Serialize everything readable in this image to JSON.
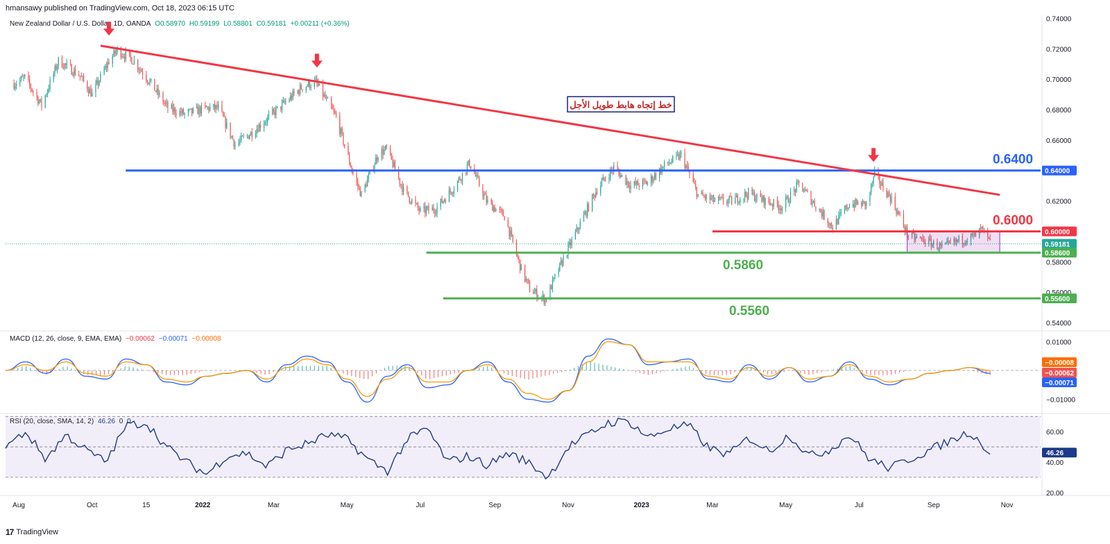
{
  "header": {
    "publisher": "hmansawy published on TradingView.com, Oct 18, 2023 06:15 UTC"
  },
  "price_legend": {
    "symbol": "New Zealand Dollar / U.S. Dollar, 1D, OANDA",
    "open": "O0.58970",
    "high": "H0.59199",
    "low": "L0.58801",
    "close": "C0.59181",
    "change": "+0.00211 (+0.36%)"
  },
  "macd_legend": {
    "label": "MACD (12, 26, close, 9, EMA, EMA)",
    "hist": "−0.00062",
    "macd": "−0.00071",
    "signal": "−0.00008"
  },
  "rsi_legend": {
    "label": "RSI (20, close, SMA, 14, 2)",
    "value": "46.26",
    "extra1": "0",
    "extra2": "0"
  },
  "brand": "TradingView",
  "colors": {
    "up": "#26a69a",
    "down": "#ef5350",
    "trend": "#f23645",
    "blue": "#2962ff",
    "green": "#4caf50",
    "macd": "#2962ff",
    "signal": "#ff9800",
    "rsi": "#1e3a8a"
  },
  "chart_data": [
    {
      "type": "candlestick",
      "title": "New Zealand Dollar / U.S. Dollar, 1D, OANDA",
      "ylim": [
        0.535,
        0.742
      ],
      "y_ticks": [
        "0.74000",
        "0.72000",
        "0.70000",
        "0.68000",
        "0.66000",
        "0.64000",
        "0.62000",
        "0.60000",
        "0.58000",
        "0.56000",
        "0.54000"
      ],
      "x_ticks": [
        "Aug",
        "Oct",
        "15",
        "2022",
        "Mar",
        "May",
        "Jul",
        "Sep",
        "Nov",
        "2023",
        "Mar",
        "May",
        "Jul",
        "Sep",
        "Nov"
      ],
      "price_path": [
        [
          "2021-07-28",
          0.697
        ],
        [
          "2021-08-06",
          0.701
        ],
        [
          "2021-08-20",
          0.683
        ],
        [
          "2021-09-03",
          0.712
        ],
        [
          "2021-09-20",
          0.703
        ],
        [
          "2021-10-01",
          0.69
        ],
        [
          "2021-10-15",
          0.712
        ],
        [
          "2021-10-22",
          0.719
        ],
        [
          "2021-11-05",
          0.712
        ],
        [
          "2021-11-19",
          0.697
        ],
        [
          "2021-12-03",
          0.681
        ],
        [
          "2021-12-17",
          0.677
        ],
        [
          "2022-01-04",
          0.681
        ],
        [
          "2022-01-14",
          0.681
        ],
        [
          "2022-01-28",
          0.657
        ],
        [
          "2022-02-11",
          0.665
        ],
        [
          "2022-03-04",
          0.68
        ],
        [
          "2022-03-25",
          0.695
        ],
        [
          "2022-04-05",
          0.698
        ],
        [
          "2022-04-22",
          0.675
        ],
        [
          "2022-05-06",
          0.638
        ],
        [
          "2022-05-13",
          0.624
        ],
        [
          "2022-05-27",
          0.651
        ],
        [
          "2022-06-03",
          0.654
        ],
        [
          "2022-06-17",
          0.627
        ],
        [
          "2022-07-01",
          0.613
        ],
        [
          "2022-07-14",
          0.615
        ],
        [
          "2022-07-29",
          0.629
        ],
        [
          "2022-08-11",
          0.645
        ],
        [
          "2022-08-25",
          0.62
        ],
        [
          "2022-09-09",
          0.61
        ],
        [
          "2022-09-23",
          0.575
        ],
        [
          "2022-09-30",
          0.562
        ],
        [
          "2022-10-13",
          0.555
        ],
        [
          "2022-10-28",
          0.582
        ],
        [
          "2022-11-11",
          0.605
        ],
        [
          "2022-11-25",
          0.628
        ],
        [
          "2022-12-09",
          0.642
        ],
        [
          "2022-12-23",
          0.63
        ],
        [
          "2023-01-06",
          0.632
        ],
        [
          "2023-01-20",
          0.643
        ],
        [
          "2023-02-03",
          0.65
        ],
        [
          "2023-02-17",
          0.624
        ],
        [
          "2023-03-03",
          0.62
        ],
        [
          "2023-03-17",
          0.62
        ],
        [
          "2023-03-31",
          0.625
        ],
        [
          "2023-04-14",
          0.62
        ],
        [
          "2023-04-28",
          0.616
        ],
        [
          "2023-05-12",
          0.631
        ],
        [
          "2023-05-26",
          0.617
        ],
        [
          "2023-06-09",
          0.603
        ],
        [
          "2023-06-23",
          0.618
        ],
        [
          "2023-07-07",
          0.618
        ],
        [
          "2023-07-14",
          0.637
        ],
        [
          "2023-07-28",
          0.621
        ],
        [
          "2023-08-11",
          0.597
        ],
        [
          "2023-08-25",
          0.594
        ],
        [
          "2023-09-08",
          0.589
        ],
        [
          "2023-09-22",
          0.594
        ],
        [
          "2023-10-06",
          0.597
        ],
        [
          "2023-10-11",
          0.601
        ],
        [
          "2023-10-18",
          0.592
        ]
      ],
      "trendline": [
        [
          "2021-10-08",
          0.722
        ],
        [
          "2023-10-26",
          0.624
        ]
      ],
      "levels": [
        {
          "label": "0.6400",
          "value": 0.64,
          "from": "2021-10-29",
          "color": "#2962ff"
        },
        {
          "label": "0.6000",
          "value": 0.6,
          "from": "2023-03-01",
          "color": "#f23645"
        },
        {
          "label": "0.5860",
          "value": 0.586,
          "from": "2022-07-06",
          "color": "#4caf50"
        },
        {
          "label": "0.5560",
          "value": 0.556,
          "from": "2022-07-20",
          "color": "#4caf50"
        }
      ],
      "range_box": {
        "from": "2023-08-10",
        "to": "2023-10-26",
        "top": 0.6,
        "bottom": 0.586
      },
      "annotation": "خط إتجاه هابط طويل الأجل",
      "arrows": [
        [
          "2021-10-15",
          0.725
        ],
        [
          "2022-04-06",
          0.704
        ],
        [
          "2023-07-13",
          0.642
        ]
      ],
      "price_tags": [
        {
          "label": "0.64000",
          "value": 0.64,
          "color": "#2962ff"
        },
        {
          "label": "0.60000",
          "value": 0.6,
          "color": "#f23645"
        },
        {
          "label": "0.59181",
          "value": 0.5918,
          "color": "#26a69a"
        },
        {
          "label": "0.58600",
          "value": 0.586,
          "color": "#4caf50"
        },
        {
          "label": "0.55600",
          "value": 0.556,
          "color": "#4caf50"
        }
      ],
      "last_price": 0.5918
    },
    {
      "type": "line",
      "title": "MACD (12, 26, close, 9, EMA, EMA)",
      "ylim": [
        -0.0145,
        0.0135
      ],
      "y_ticks": [
        "0.01000",
        "0.00000",
        "−0.01000"
      ],
      "series": [
        {
          "name": "MACD",
          "color": "#2962ff",
          "values": [
            0.0,
            0.003,
            -0.001,
            0.004,
            -0.002,
            -0.003,
            0.004,
            0.002,
            -0.004,
            -0.005,
            -0.002,
            -0.001,
            0.0,
            -0.004,
            0.002,
            0.005,
            0.003,
            -0.004,
            -0.011,
            -0.002,
            0.002,
            -0.006,
            -0.005,
            0.0,
            0.003,
            -0.004,
            -0.01,
            -0.011,
            -0.007,
            0.005,
            0.011,
            0.009,
            0.002,
            0.003,
            0.004,
            -0.003,
            -0.004,
            0.002,
            -0.003,
            0.001,
            -0.004,
            -0.002,
            0.003,
            -0.003,
            -0.005,
            -0.003,
            -0.001,
            0.0,
            0.001,
            -0.001
          ]
        },
        {
          "name": "Signal",
          "color": "#ff9800",
          "values": [
            0.0,
            0.002,
            0.0,
            0.003,
            -0.001,
            -0.002,
            0.003,
            0.002,
            -0.003,
            -0.004,
            -0.002,
            -0.001,
            0.0,
            -0.003,
            0.001,
            0.004,
            0.002,
            -0.003,
            -0.009,
            -0.003,
            0.001,
            -0.004,
            -0.004,
            0.0,
            0.002,
            -0.003,
            -0.008,
            -0.01,
            -0.007,
            0.003,
            0.01,
            0.009,
            0.003,
            0.003,
            0.003,
            -0.002,
            -0.003,
            0.001,
            -0.002,
            0.001,
            -0.003,
            -0.002,
            0.002,
            -0.002,
            -0.004,
            -0.003,
            -0.001,
            0.0,
            0.001,
            0.0
          ]
        }
      ],
      "price_tags": [
        {
          "label": "−0.00008",
          "value": -8e-05,
          "color": "#ff6d00"
        },
        {
          "label": "−0.00062",
          "value": -0.00062,
          "color": "#ef5350"
        },
        {
          "label": "−0.00071",
          "value": -0.00071,
          "color": "#2962ff"
        }
      ]
    },
    {
      "type": "line",
      "title": "RSI (20, close, SMA, 14, 2)",
      "ylim": [
        19,
        71
      ],
      "y_ticks": [
        "60.00",
        "40.00",
        "20.00"
      ],
      "bands": [
        30,
        50,
        70
      ],
      "series": [
        {
          "name": "RSI",
          "color": "#1e3a8a",
          "values": [
            50,
            60,
            42,
            58,
            48,
            40,
            64,
            66,
            50,
            40,
            32,
            44,
            46,
            37,
            48,
            52,
            58,
            55,
            42,
            34,
            55,
            62,
            40,
            44,
            38,
            46,
            40,
            30,
            50,
            58,
            66,
            67,
            56,
            62,
            64,
            49,
            45,
            56,
            47,
            58,
            44,
            48,
            58,
            42,
            36,
            42,
            48,
            54,
            60,
            46
          ]
        }
      ],
      "price_tags": [
        {
          "label": "46.26",
          "value": 46.26,
          "color": "#1e3a8a"
        }
      ]
    }
  ]
}
